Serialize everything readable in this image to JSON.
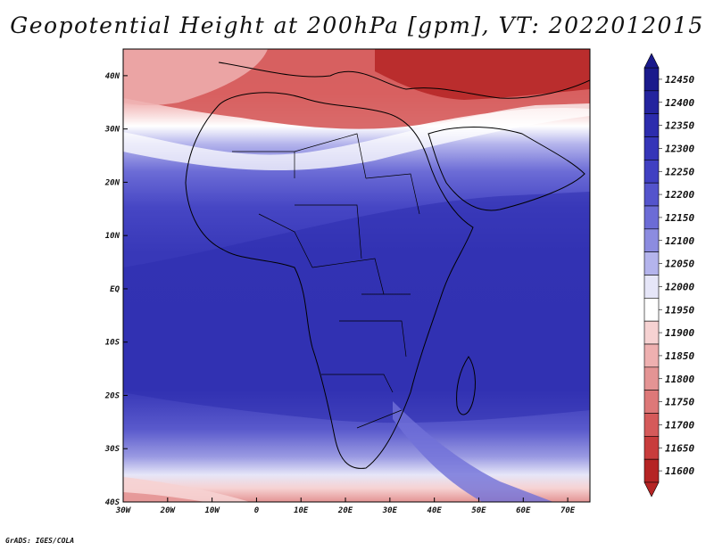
{
  "title": "Geopotential Height at 200hPa [gpm], VT: 2022012015",
  "footer": "GrADS: IGES/COLA",
  "map": {
    "region": "Africa and Middle East",
    "variable": "Geopotential Height",
    "level": "200hPa",
    "units": "gpm",
    "valid_time": "2022012015",
    "lon_range": [
      -30,
      75
    ],
    "lat_range": [
      -40,
      45
    ],
    "lon_labels": [
      "30W",
      "20W",
      "10W",
      "0",
      "10E",
      "20E",
      "30E",
      "40E",
      "50E",
      "60E",
      "70E"
    ],
    "lat_labels": [
      "40N",
      "30N",
      "20N",
      "10N",
      "EQ",
      "10S",
      "20S",
      "30S",
      "40S"
    ]
  },
  "colorbar": {
    "min_label": "11600",
    "max_label": "12450",
    "levels": [
      {
        "label": "12450",
        "color": "#1a1a8c"
      },
      {
        "label": "12400",
        "color": "#24249e"
      },
      {
        "label": "12350",
        "color": "#2c2cad"
      },
      {
        "label": "12300",
        "color": "#3535b8"
      },
      {
        "label": "12250",
        "color": "#4040c2"
      },
      {
        "label": "12200",
        "color": "#5454cc"
      },
      {
        "label": "12150",
        "color": "#6c6cd6"
      },
      {
        "label": "12100",
        "color": "#8c8ce0"
      },
      {
        "label": "12050",
        "color": "#b4b4ec"
      },
      {
        "label": "12000",
        "color": "#e6e6f8"
      },
      {
        "label": "11950",
        "color": "#ffffff"
      },
      {
        "label": "11900",
        "color": "#f6d2d2"
      },
      {
        "label": "11850",
        "color": "#eeb0b0"
      },
      {
        "label": "11800",
        "color": "#e49494"
      },
      {
        "label": "11750",
        "color": "#dd7878"
      },
      {
        "label": "11700",
        "color": "#d55a5a"
      },
      {
        "label": "11650",
        "color": "#c83c3c"
      },
      {
        "label": "11600",
        "color": "#b52424"
      }
    ]
  }
}
